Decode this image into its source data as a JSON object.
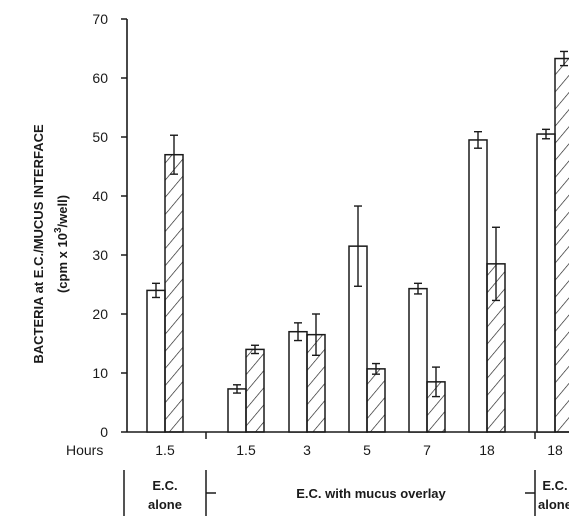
{
  "chart_data": {
    "type": "bar",
    "ylabel_line1": "BACTERIA at E.C./MUCUS INTERFACE",
    "ylabel_line2_pre": "(cpm x 10",
    "ylabel_line2_sup": "3",
    "ylabel_line2_post": "/well)",
    "x_axis_title": "Hours",
    "ylim": [
      0,
      70
    ],
    "yticks": [
      0,
      10,
      20,
      30,
      40,
      50,
      60,
      70
    ],
    "categories": [
      "1.5",
      "1.5",
      "3",
      "5",
      "7",
      "18",
      "18"
    ],
    "series": [
      {
        "pattern": "open",
        "values": [
          24,
          7.3,
          17,
          31.5,
          24.3,
          49.5,
          50.5
        ],
        "errors": [
          1.2,
          0.7,
          1.5,
          6.8,
          0.9,
          1.4,
          0.8
        ]
      },
      {
        "pattern": "hatched",
        "values": [
          47,
          14,
          16.5,
          10.7,
          8.5,
          28.5,
          63.3
        ],
        "errors": [
          3.3,
          0.7,
          3.5,
          0.9,
          2.5,
          6.2,
          1.2
        ]
      }
    ],
    "groups": [
      {
        "label_line1": "E.C.",
        "label_line2": "alone"
      },
      {
        "label_line1": "E.C. with mucus overlay",
        "label_line2": ""
      },
      {
        "label_line1": "E.C.",
        "label_line2": "alone"
      }
    ]
  }
}
